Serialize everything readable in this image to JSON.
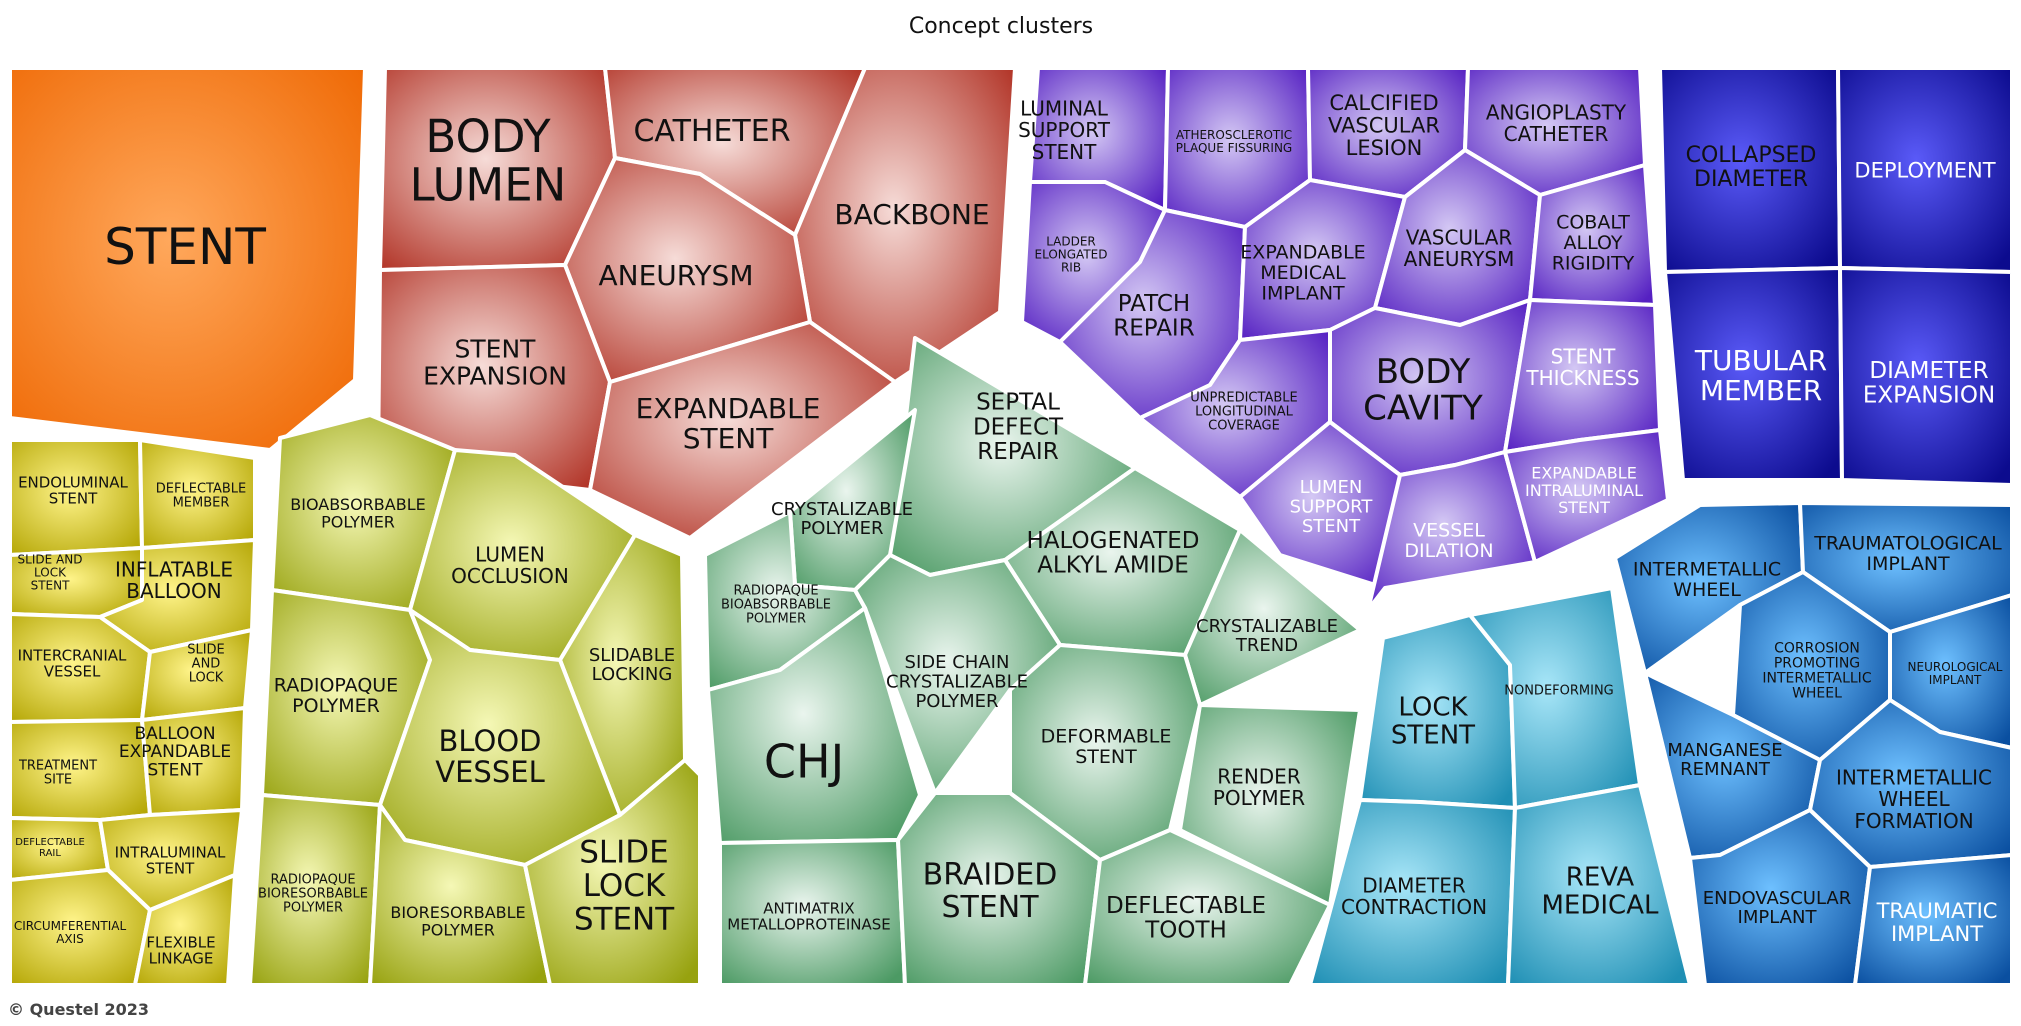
{
  "title": "Concept clusters",
  "copyright": "© Questel 2023",
  "groups": [
    {
      "id": "stent",
      "colors": {
        "light": "#ffa85c",
        "dark": "#ef6a06"
      }
    },
    {
      "id": "red",
      "colors": {
        "light": "#f6dcd8",
        "dark": "#b23528"
      }
    },
    {
      "id": "purple",
      "colors": {
        "light": "#d4c8f4",
        "dark": "#5520c2"
      }
    },
    {
      "id": "blue",
      "colors": {
        "light": "#5a5af8",
        "dark": "#0c0b8e"
      }
    },
    {
      "id": "yellow",
      "colors": {
        "light": "#fff48a",
        "dark": "#b5a706"
      }
    },
    {
      "id": "lime",
      "colors": {
        "light": "#f5f8b6",
        "dark": "#97a20f"
      }
    },
    {
      "id": "green",
      "colors": {
        "light": "#eaf5ee",
        "dark": "#4c9a64"
      }
    },
    {
      "id": "cyan",
      "colors": {
        "light": "#a8e6f8",
        "dark": "#1f8fb4"
      }
    },
    {
      "id": "azure",
      "colors": {
        "light": "#6ec0ff",
        "dark": "#0a4fa0"
      }
    }
  ],
  "cells": [
    {
      "label": "STENT",
      "group": "stent"
    },
    {
      "label": "BODY LUMEN",
      "group": "red"
    },
    {
      "label": "CATHETER",
      "group": "red"
    },
    {
      "label": "BACKBONE",
      "group": "red"
    },
    {
      "label": "ANEURYSM",
      "group": "red"
    },
    {
      "label": "STENT EXPANSION",
      "group": "red"
    },
    {
      "label": "EXPANDABLE STENT",
      "group": "red"
    },
    {
      "label": "LUMINAL SUPPORT STENT",
      "group": "purple"
    },
    {
      "label": "ATHEROSCLEROTIC PLAQUE FISSURING",
      "group": "purple"
    },
    {
      "label": "CALCIFIED VASCULAR LESION",
      "group": "purple"
    },
    {
      "label": "ANGIOPLASTY CATHETER",
      "group": "purple"
    },
    {
      "label": "LADDER ELONGATED RIB",
      "group": "purple"
    },
    {
      "label": "PATCH REPAIR",
      "group": "purple"
    },
    {
      "label": "EXPANDABLE MEDICAL IMPLANT",
      "group": "purple"
    },
    {
      "label": "VASCULAR ANEURYSM",
      "group": "purple"
    },
    {
      "label": "COBALT ALLOY RIGIDITY",
      "group": "purple"
    },
    {
      "label": "UNPREDICTABLE LONGITUDINAL COVERAGE",
      "group": "purple"
    },
    {
      "label": "BODY CAVITY",
      "group": "purple"
    },
    {
      "label": "STENT THICKNESS",
      "group": "purple"
    },
    {
      "label": "LUMEN SUPPORT STENT",
      "group": "purple"
    },
    {
      "label": "VESSEL DILATION",
      "group": "purple"
    },
    {
      "label": "EXPANDABLE INTRALUMINAL STENT",
      "group": "purple"
    },
    {
      "label": "COLLAPSED DIAMETER",
      "group": "blue"
    },
    {
      "label": "DEPLOYMENT",
      "group": "blue"
    },
    {
      "label": "TUBULAR MEMBER",
      "group": "blue"
    },
    {
      "label": "DIAMETER EXPANSION",
      "group": "blue"
    },
    {
      "label": "ENDOLUMINAL STENT",
      "group": "yellow"
    },
    {
      "label": "DEFLECTABLE MEMBER",
      "group": "yellow"
    },
    {
      "label": "SLIDE AND LOCK STENT",
      "group": "yellow"
    },
    {
      "label": "INFLATABLE BALLOON",
      "group": "yellow"
    },
    {
      "label": "INTERCRANIAL VESSEL",
      "group": "yellow"
    },
    {
      "label": "SLIDE AND LOCK",
      "group": "yellow"
    },
    {
      "label": "TREATMENT SITE",
      "group": "yellow"
    },
    {
      "label": "BALLOON EXPANDABLE STENT",
      "group": "yellow"
    },
    {
      "label": "DEFLECTABLE RAIL",
      "group": "yellow"
    },
    {
      "label": "INTRALUMINAL STENT",
      "group": "yellow"
    },
    {
      "label": "CIRCUMFERENTIAL AXIS",
      "group": "yellow"
    },
    {
      "label": "FLEXIBLE LINKAGE",
      "group": "yellow"
    },
    {
      "label": "BIOABSORBABLE POLYMER",
      "group": "lime"
    },
    {
      "label": "LUMEN OCCLUSION",
      "group": "lime"
    },
    {
      "label": "SLIDABLE LOCKING",
      "group": "lime"
    },
    {
      "label": "RADIOPAQUE POLYMER",
      "group": "lime"
    },
    {
      "label": "BLOOD VESSEL",
      "group": "lime"
    },
    {
      "label": "RADIOPAQUE BIORESORBABLE POLYMER",
      "group": "lime"
    },
    {
      "label": "BIORESORBABLE POLYMER",
      "group": "lime"
    },
    {
      "label": "SLIDE LOCK STENT",
      "group": "lime"
    },
    {
      "label": "SEPTAL DEFECT REPAIR",
      "group": "green"
    },
    {
      "label": "CRYSTALIZABLE POLYMER",
      "group": "green"
    },
    {
      "label": "HALOGENATED ALKYL AMIDE",
      "group": "green"
    },
    {
      "label": "RADIOPAQUE BIOABSORBABLE POLYMER",
      "group": "green"
    },
    {
      "label": "CRYSTALIZABLE TREND",
      "group": "green"
    },
    {
      "label": "SIDE CHAIN CRYSTALIZABLE POLYMER",
      "group": "green"
    },
    {
      "label": "CHJ",
      "group": "green"
    },
    {
      "label": "DEFORMABLE STENT",
      "group": "green"
    },
    {
      "label": "RENDER POLYMER",
      "group": "green"
    },
    {
      "label": "ANTIMATRIX METALLOPROTEINASE",
      "group": "green"
    },
    {
      "label": "BRAIDED STENT",
      "group": "green"
    },
    {
      "label": "DEFLECTABLE TOOTH",
      "group": "green"
    },
    {
      "label": "LOCK STENT",
      "group": "cyan"
    },
    {
      "label": "NONDEFORMING",
      "group": "cyan"
    },
    {
      "label": "DIAMETER CONTRACTION",
      "group": "cyan"
    },
    {
      "label": "REVA MEDICAL",
      "group": "cyan"
    },
    {
      "label": "INTERMETALLIC WHEEL",
      "group": "azure"
    },
    {
      "label": "TRAUMATOLOGICAL IMPLANT",
      "group": "azure"
    },
    {
      "label": "CORROSION PROMOTING INTERMETALLIC WHEEL",
      "group": "azure"
    },
    {
      "label": "NEUROLOGICAL IMPLANT",
      "group": "azure"
    },
    {
      "label": "MANGANESE REMNANT",
      "group": "azure"
    },
    {
      "label": "INTERMETALLIC WHEEL FORMATION",
      "group": "azure"
    },
    {
      "label": "ENDOVASCULAR IMPLANT",
      "group": "azure"
    },
    {
      "label": "TRAUMATIC IMPLANT",
      "group": "azure"
    }
  ]
}
